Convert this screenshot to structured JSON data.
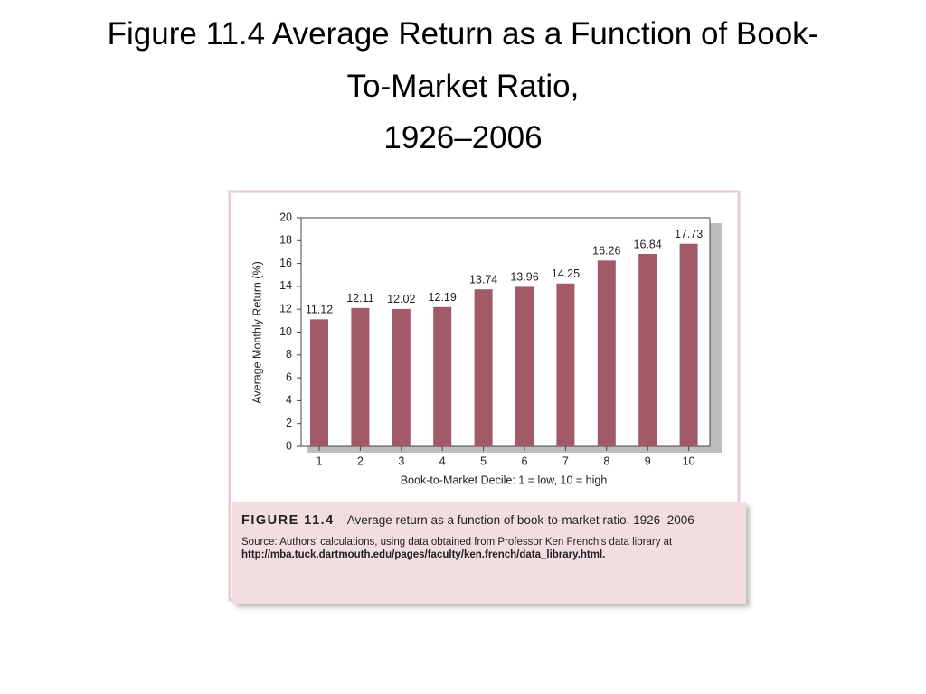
{
  "slide": {
    "title_lines": [
      "Figure 11.4 Average Return as a Function of Book-",
      "To-Market Ratio,",
      "1926–2006"
    ]
  },
  "chart_data": {
    "type": "bar",
    "categories": [
      "1",
      "2",
      "3",
      "4",
      "5",
      "6",
      "7",
      "8",
      "9",
      "10"
    ],
    "values": [
      11.12,
      12.11,
      12.02,
      12.19,
      13.74,
      13.96,
      14.25,
      16.26,
      16.84,
      17.73
    ],
    "color": "#a35a68",
    "ylim": [
      0,
      20
    ],
    "yticks": [
      0,
      2,
      4,
      6,
      8,
      10,
      12,
      14,
      16,
      18,
      20
    ],
    "x_label": "Book-to-Market Decile: 1 = low, 10 = high",
    "y_label": "Average Monthly Return (%)",
    "grid": false
  },
  "figure_caption": {
    "label": "FIGURE 11.4",
    "text": "Average return as a function of book-to-market ratio, 1926–2006",
    "source": "Source: Authors’ calculations, using data obtained from Professor Ken French’s data library at",
    "url": "http://mba.tuck.dartmouth.edu/pages/faculty/ken.french/data_library.html."
  }
}
